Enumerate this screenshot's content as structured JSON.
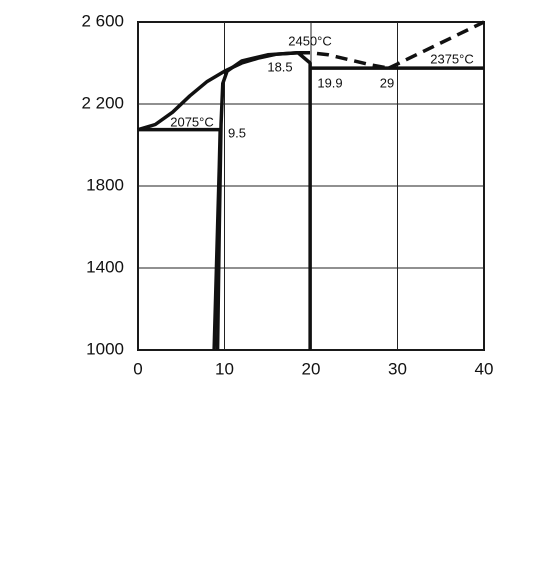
{
  "chart_data": {
    "type": "line",
    "xlim": [
      0,
      40
    ],
    "xticks": [
      0,
      10,
      20,
      30,
      40
    ],
    "ylim": [
      1000,
      2600
    ],
    "yticks": [
      1000,
      1400,
      1800,
      {
        "value": 2200,
        "label": "2 200"
      },
      {
        "value": 2600,
        "label": "2 600"
      }
    ],
    "grid": true,
    "series": [
      {
        "color": "#111",
        "dashed": false,
        "x": [
          0,
          2,
          4,
          6,
          8,
          10,
          12,
          14,
          16,
          18.5
        ],
        "values": [
          2075,
          2100,
          2160,
          2240,
          2310,
          2360,
          2400,
          2425,
          2443,
          2450
        ]
      },
      {
        "color": "#111",
        "dashed": true,
        "x": [
          18.5,
          20,
          22,
          25,
          27,
          29
        ],
        "values": [
          2450,
          2450,
          2440,
          2410,
          2390,
          2375
        ]
      },
      {
        "color": "#111",
        "dashed": true,
        "x": [
          29,
          40
        ],
        "values": [
          2375,
          2600
        ]
      },
      {
        "color": "#111",
        "dashed": false,
        "x": [
          0,
          9.5
        ],
        "values": [
          2075,
          2075
        ]
      },
      {
        "color": "#111",
        "dashed": false,
        "x": [
          9.5,
          9.4,
          9.2,
          9,
          8.8
        ],
        "values": [
          2075,
          1900,
          1600,
          1300,
          1000
        ]
      },
      {
        "color": "#111",
        "dashed": false,
        "x": [
          18.5,
          15,
          12,
          10.3,
          9.8,
          9.6,
          9.4,
          9.2
        ],
        "values": [
          2450,
          2440,
          2410,
          2360,
          2300,
          2100,
          1600,
          1000
        ]
      },
      {
        "color": "#111",
        "dashed": false,
        "x": [
          18.5,
          19.9,
          19.9
        ],
        "values": [
          2450,
          2400,
          1000
        ]
      },
      {
        "color": "#111",
        "dashed": false,
        "x": [
          19.9,
          40
        ],
        "values": [
          2375,
          2375
        ]
      }
    ],
    "annotations": [
      "2450°C",
      "2375°C",
      "2075°C",
      "18.5",
      "19.9",
      "29",
      "9.5"
    ]
  }
}
